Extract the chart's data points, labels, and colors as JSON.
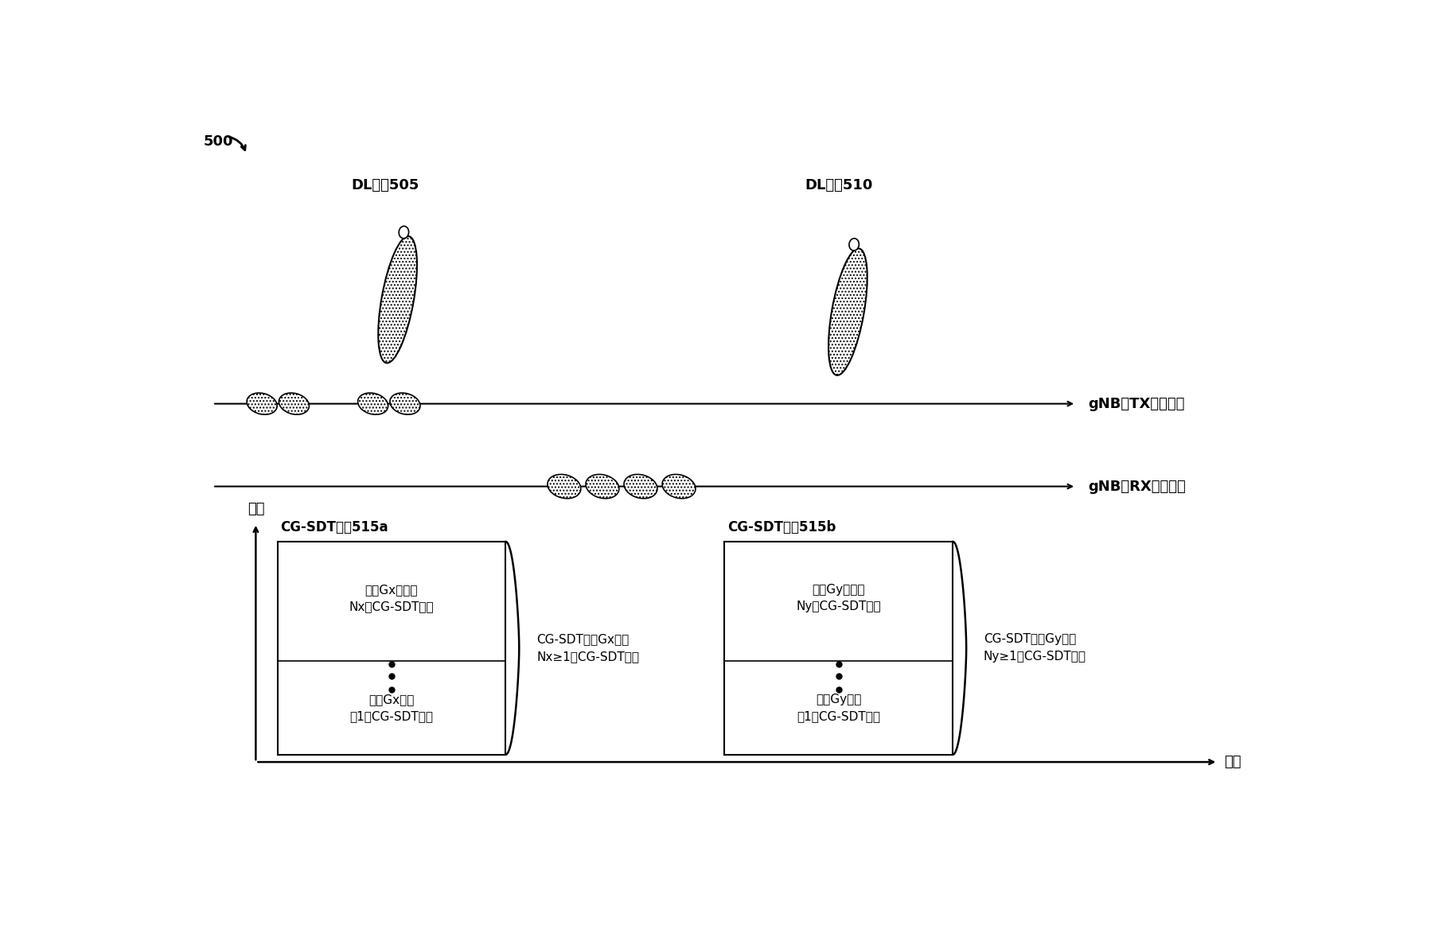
{
  "fig_width": 18.27,
  "fig_height": 11.63,
  "bg_color": "#ffffff",
  "label_500": "500",
  "label_DL505": "DL波束505",
  "label_DL510": "DL波束510",
  "label_TX": "gNB的TX波束扫描",
  "label_RX": "gNB的RX波束扫描",
  "label_freq": "频率",
  "label_time": "时间",
  "label_group515a": "CG-SDT群组515a",
  "label_group515b": "CG-SDT群组515b",
  "label_top_Nx": "群组Gx中的第\nNx个CG-SDT时机",
  "label_top_Ny": "群组Gy中的第\nNy个CG-SDT时机",
  "label_bot_Gx": "群组Gx中的\n第1个CG-SDT时机",
  "label_bot_Gy": "群组Gy中的\n第1个CG-SDT时机",
  "label_brace_Gx": "CG-SDT群组Gx中的\nNx≥1个CG-SDT时机",
  "label_brace_Gy": "CG-SDT群组Gy中的\nNy≥1个CG-SDT时机"
}
